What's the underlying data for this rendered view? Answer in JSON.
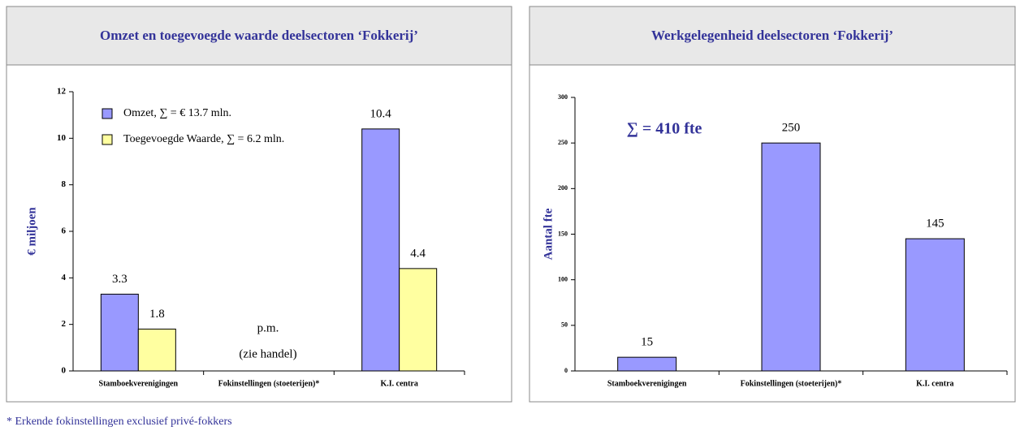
{
  "chart_data": [
    {
      "type": "bar",
      "title": "Omzet en toegevoegde waarde deelsectoren ‘Fokkerij’",
      "y_label": "€ miljoen",
      "categories": [
        "Stamboekverenigingen",
        "Fokinstellingen (stoeterijen)*",
        "K.I. centra"
      ],
      "series": [
        {
          "name": "Omzet, ∑ = € 13.7 mln.",
          "color": "#9999ff",
          "values": [
            3.3,
            null,
            10.4
          ]
        },
        {
          "name": "Toegevoegde Waarde, ∑ = 6.2 mln.",
          "color": "#ffffa0",
          "values": [
            1.8,
            null,
            4.4
          ]
        }
      ],
      "annotations": [
        "p.m.",
        "(zie handel)"
      ],
      "ylim": [
        0,
        12
      ],
      "yticks": [
        0,
        2,
        4,
        6,
        8,
        10,
        12
      ],
      "legend": "upper left"
    },
    {
      "type": "bar",
      "title": "Werkgelegenheid deelsectoren ‘Fokkerij’",
      "y_label": "Aantal fte",
      "categories": [
        "Stamboekverenigingen",
        "Fokinstellingen (stoeterijen)*",
        "K.I. centra"
      ],
      "series": [
        {
          "name": "Aantal fte",
          "color": "#9999ff",
          "values": [
            15,
            250,
            145
          ]
        }
      ],
      "annotations": [
        "∑ = 410 fte"
      ],
      "ylim": [
        0,
        300
      ],
      "yticks": [
        0,
        50,
        100,
        150,
        200,
        250,
        300
      ]
    }
  ],
  "footnote": "* Erkende fokinstellingen exclusief privé-fokkers"
}
